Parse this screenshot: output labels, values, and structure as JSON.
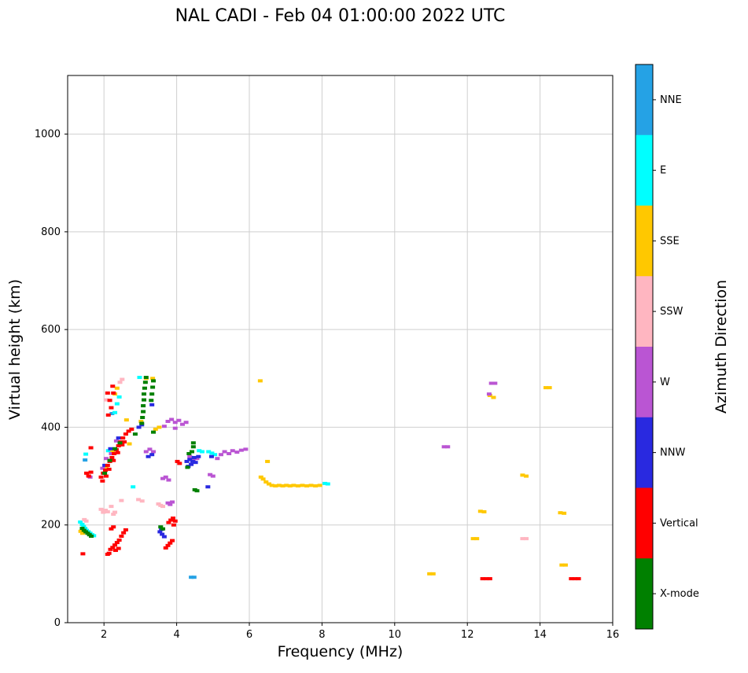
{
  "header": {
    "title": "NAL CADI - Feb 04 01:00:00 2022 UTC"
  },
  "chart_data": {
    "type": "scatter",
    "title": "NAL CADI - Feb 04 01:00:00 2022 UTC",
    "xlabel": "Frequency (MHz)",
    "ylabel": "Virtual height (km)",
    "xlim": [
      1,
      16
    ],
    "ylim": [
      0,
      1120
    ],
    "xticks": [
      2,
      4,
      6,
      8,
      10,
      12,
      14,
      16
    ],
    "yticks": [
      0,
      200,
      400,
      600,
      800,
      1000
    ],
    "grid": true,
    "marker": "square",
    "colorbar": {
      "label": "Azimuth Direction",
      "entries_top_to_bottom": [
        {
          "label": "NNE",
          "color": "#25A2E5"
        },
        {
          "label": "E",
          "color": "#00FFFF"
        },
        {
          "label": "SSE",
          "color": "#FFC800"
        },
        {
          "label": "SSW",
          "color": "#FFB6C1"
        },
        {
          "label": "W",
          "color": "#BA55D3"
        },
        {
          "label": "NNW",
          "color": "#2929E0"
        },
        {
          "label": "Vertical",
          "color": "#FF0000"
        },
        {
          "label": "X-mode",
          "color": "#008000"
        }
      ]
    },
    "series": [
      {
        "name": "NNE",
        "color": "#25A2E5",
        "points": [
          [
            4.4,
            93
          ],
          [
            4.48,
            93
          ],
          [
            1.48,
            333
          ],
          [
            2.22,
            428
          ]
        ]
      },
      {
        "name": "E",
        "color": "#00FFFF",
        "points": [
          [
            1.35,
            206
          ],
          [
            1.4,
            201
          ],
          [
            1.44,
            197
          ],
          [
            1.48,
            193
          ],
          [
            1.52,
            189
          ],
          [
            1.57,
            186
          ],
          [
            1.62,
            183
          ],
          [
            1.67,
            180
          ],
          [
            1.72,
            178
          ],
          [
            1.5,
            345
          ],
          [
            2.12,
            352
          ],
          [
            2.3,
            430
          ],
          [
            2.36,
            448
          ],
          [
            2.42,
            462
          ],
          [
            2.98,
            502
          ],
          [
            2.8,
            278
          ],
          [
            4.62,
            352
          ],
          [
            4.7,
            350
          ],
          [
            4.88,
            350
          ],
          [
            4.97,
            347
          ],
          [
            5.05,
            344
          ],
          [
            8.08,
            285
          ],
          [
            8.16,
            284
          ]
        ]
      },
      {
        "name": "SSE",
        "color": "#FFC800",
        "points": [
          [
            1.36,
            187
          ],
          [
            1.41,
            183
          ],
          [
            2.06,
            316
          ],
          [
            2.24,
            352
          ],
          [
            2.3,
            468
          ],
          [
            2.36,
            480
          ],
          [
            2.62,
            415
          ],
          [
            2.7,
            366
          ],
          [
            3.02,
            412
          ],
          [
            3.16,
            500
          ],
          [
            3.34,
            500
          ],
          [
            3.42,
            396
          ],
          [
            3.52,
            400
          ],
          [
            6.32,
            298
          ],
          [
            6.38,
            294
          ],
          [
            6.46,
            288
          ],
          [
            6.54,
            284
          ],
          [
            6.62,
            281
          ],
          [
            6.72,
            280
          ],
          [
            6.82,
            281
          ],
          [
            6.92,
            280
          ],
          [
            7.02,
            281
          ],
          [
            7.12,
            280
          ],
          [
            7.22,
            281
          ],
          [
            7.34,
            280
          ],
          [
            7.46,
            281
          ],
          [
            7.58,
            280
          ],
          [
            7.7,
            281
          ],
          [
            7.82,
            280
          ],
          [
            7.94,
            281
          ],
          [
            6.5,
            330
          ],
          [
            6.3,
            495
          ],
          [
            12.62,
            465
          ],
          [
            12.72,
            461
          ],
          [
            14.16,
            481
          ],
          [
            14.26,
            481
          ],
          [
            12.36,
            228
          ],
          [
            12.46,
            227
          ],
          [
            13.52,
            302
          ],
          [
            13.62,
            300
          ],
          [
            12.16,
            172
          ],
          [
            12.26,
            172
          ],
          [
            14.56,
            225
          ],
          [
            14.66,
            224
          ],
          [
            10.96,
            100
          ],
          [
            11.06,
            100
          ],
          [
            14.6,
            118
          ],
          [
            14.7,
            118
          ]
        ]
      },
      {
        "name": "SSW",
        "color": "#FFB6C1",
        "points": [
          [
            1.46,
            211
          ],
          [
            1.51,
            208
          ],
          [
            1.92,
            232
          ],
          [
            1.98,
            226
          ],
          [
            2.04,
            230
          ],
          [
            2.1,
            227
          ],
          [
            2.2,
            238
          ],
          [
            2.3,
            226
          ],
          [
            2.26,
            222
          ],
          [
            2.48,
            250
          ],
          [
            2.95,
            252
          ],
          [
            3.05,
            249
          ],
          [
            3.5,
            243
          ],
          [
            3.56,
            240
          ],
          [
            3.62,
            238
          ],
          [
            2.06,
            456
          ],
          [
            2.44,
            492
          ],
          [
            2.5,
            498
          ],
          [
            1.56,
            302
          ],
          [
            13.52,
            172
          ],
          [
            13.62,
            172
          ]
        ]
      },
      {
        "name": "W",
        "color": "#BA55D3",
        "points": [
          [
            1.96,
            316
          ],
          [
            2.06,
            336
          ],
          [
            2.2,
            346
          ],
          [
            2.34,
            372
          ],
          [
            1.62,
            298
          ],
          [
            3.16,
            350
          ],
          [
            3.26,
            355
          ],
          [
            3.36,
            350
          ],
          [
            3.66,
            402
          ],
          [
            3.76,
            412
          ],
          [
            3.86,
            416
          ],
          [
            3.96,
            410
          ],
          [
            4.06,
            414
          ],
          [
            4.16,
            406
          ],
          [
            4.26,
            410
          ],
          [
            3.96,
            398
          ],
          [
            3.76,
            245
          ],
          [
            3.82,
            242
          ],
          [
            3.88,
            247
          ],
          [
            3.62,
            295
          ],
          [
            3.7,
            298
          ],
          [
            3.78,
            292
          ],
          [
            4.36,
            340
          ],
          [
            4.56,
            336
          ],
          [
            4.46,
            332
          ],
          [
            5.12,
            336
          ],
          [
            5.22,
            344
          ],
          [
            5.32,
            350
          ],
          [
            5.44,
            346
          ],
          [
            5.54,
            352
          ],
          [
            5.66,
            349
          ],
          [
            5.78,
            353
          ],
          [
            5.9,
            355
          ],
          [
            4.92,
            303
          ],
          [
            5.0,
            300
          ],
          [
            11.36,
            360
          ],
          [
            11.46,
            360
          ],
          [
            12.66,
            490
          ],
          [
            12.76,
            490
          ],
          [
            12.6,
            468
          ]
        ]
      },
      {
        "name": "NNW",
        "color": "#2929E0",
        "points": [
          [
            2.02,
            322
          ],
          [
            2.18,
            356
          ],
          [
            2.4,
            378
          ],
          [
            2.96,
            400
          ],
          [
            3.04,
            405
          ],
          [
            3.22,
            340
          ],
          [
            3.32,
            344
          ],
          [
            3.54,
            186
          ],
          [
            3.6,
            181
          ],
          [
            3.66,
            176
          ],
          [
            3.58,
            191
          ],
          [
            4.28,
            330
          ],
          [
            4.36,
            334
          ],
          [
            4.44,
            330
          ],
          [
            4.52,
            328
          ],
          [
            4.4,
            324
          ],
          [
            4.48,
            338
          ],
          [
            4.6,
            340
          ],
          [
            4.32,
            320
          ],
          [
            4.96,
            340
          ],
          [
            3.32,
            446
          ],
          [
            4.86,
            278
          ]
        ]
      },
      {
        "name": "Vertical",
        "color": "#FF0000",
        "points": [
          [
            1.42,
            141
          ],
          [
            2.1,
            140
          ],
          [
            2.14,
            142
          ],
          [
            2.18,
            150
          ],
          [
            2.24,
            154
          ],
          [
            2.3,
            159
          ],
          [
            2.36,
            164
          ],
          [
            2.42,
            169
          ],
          [
            2.48,
            177
          ],
          [
            2.54,
            184
          ],
          [
            2.6,
            190
          ],
          [
            2.32,
            148
          ],
          [
            2.4,
            152
          ],
          [
            2.2,
            192
          ],
          [
            2.26,
            196
          ],
          [
            1.92,
            298
          ],
          [
            1.98,
            306
          ],
          [
            2.04,
            312
          ],
          [
            2.1,
            322
          ],
          [
            2.16,
            330
          ],
          [
            2.22,
            338
          ],
          [
            2.28,
            346
          ],
          [
            2.34,
            354
          ],
          [
            2.4,
            362
          ],
          [
            2.46,
            370
          ],
          [
            2.52,
            378
          ],
          [
            2.06,
            300
          ],
          [
            2.14,
            314
          ],
          [
            2.26,
            332
          ],
          [
            2.38,
            348
          ],
          [
            2.5,
            364
          ],
          [
            1.96,
            290
          ],
          [
            2.6,
            386
          ],
          [
            2.68,
            392
          ],
          [
            2.76,
            396
          ],
          [
            2.56,
            370
          ],
          [
            2.12,
            425
          ],
          [
            2.2,
            440
          ],
          [
            2.16,
            455
          ],
          [
            2.26,
            470
          ],
          [
            2.1,
            470
          ],
          [
            2.24,
            484
          ],
          [
            1.52,
            306
          ],
          [
            1.58,
            300
          ],
          [
            1.64,
            308
          ],
          [
            1.64,
            358
          ],
          [
            3.7,
            153
          ],
          [
            3.76,
            158
          ],
          [
            3.82,
            163
          ],
          [
            3.88,
            168
          ],
          [
            3.78,
            205
          ],
          [
            3.84,
            210
          ],
          [
            3.9,
            214
          ],
          [
            3.96,
            208
          ],
          [
            3.92,
            200
          ],
          [
            4.02,
            330
          ],
          [
            4.08,
            326
          ],
          [
            12.42,
            90
          ],
          [
            12.52,
            90
          ],
          [
            12.62,
            90
          ],
          [
            14.86,
            90
          ],
          [
            14.96,
            90
          ],
          [
            15.06,
            90
          ]
        ]
      },
      {
        "name": "X-mode",
        "color": "#008000",
        "points": [
          [
            1.4,
            193
          ],
          [
            1.45,
            189
          ],
          [
            1.5,
            186
          ],
          [
            1.55,
            183
          ],
          [
            1.6,
            180
          ],
          [
            1.65,
            177
          ],
          [
            2.02,
            306
          ],
          [
            2.16,
            332
          ],
          [
            2.3,
            356
          ],
          [
            2.44,
            368
          ],
          [
            2.86,
            386
          ],
          [
            3.04,
            408
          ],
          [
            3.06,
            420
          ],
          [
            3.08,
            432
          ],
          [
            3.08,
            444
          ],
          [
            3.1,
            456
          ],
          [
            3.1,
            468
          ],
          [
            3.12,
            480
          ],
          [
            3.14,
            492
          ],
          [
            3.16,
            502
          ],
          [
            3.3,
            455
          ],
          [
            3.32,
            468
          ],
          [
            3.34,
            482
          ],
          [
            3.36,
            495
          ],
          [
            3.36,
            390
          ],
          [
            3.56,
            196
          ],
          [
            3.62,
            192
          ],
          [
            4.34,
            346
          ],
          [
            4.42,
            350
          ],
          [
            4.46,
            360
          ],
          [
            4.46,
            368
          ],
          [
            4.3,
            318
          ],
          [
            4.5,
            272
          ],
          [
            4.56,
            270
          ]
        ]
      }
    ]
  }
}
